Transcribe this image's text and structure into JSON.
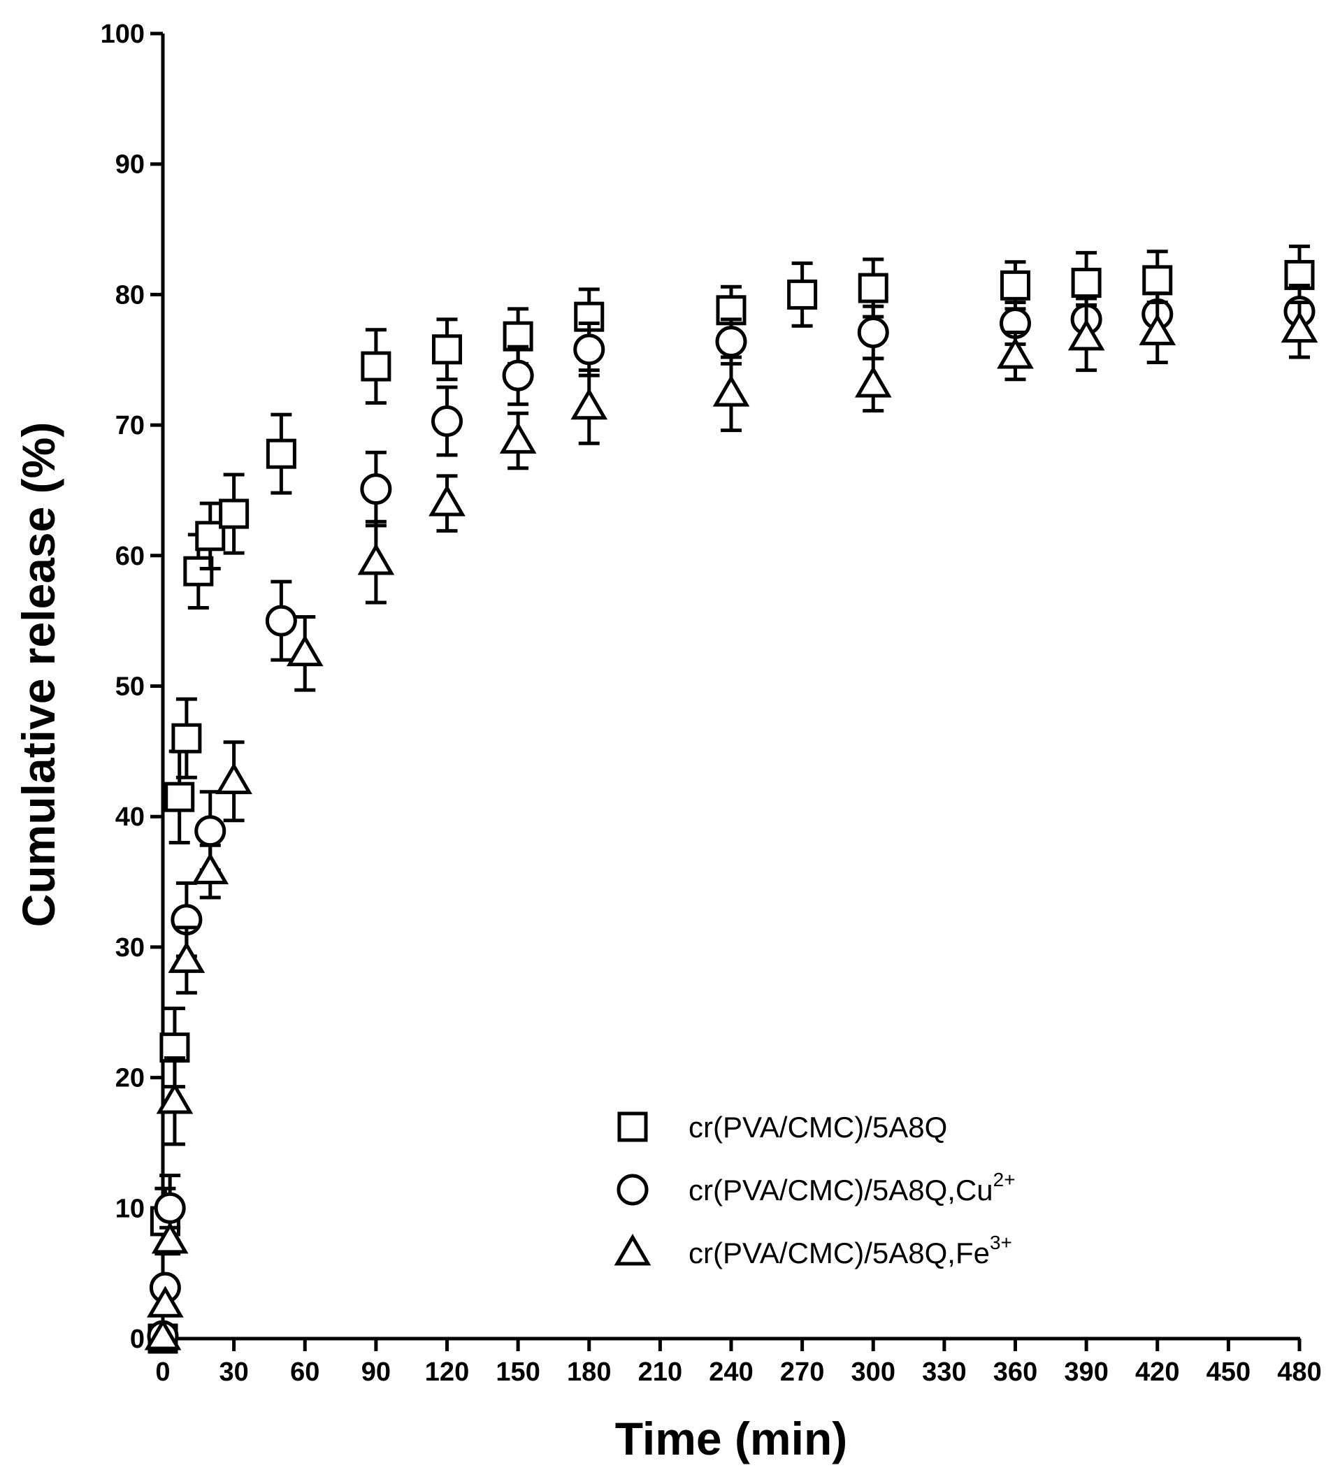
{
  "chart_data": {
    "type": "scatter",
    "xlabel": "Time (min)",
    "ylabel": "Cumulative release (%)",
    "xlim": [
      0,
      480
    ],
    "ylim": [
      0,
      100
    ],
    "x_ticks": [
      "0",
      "30",
      "60",
      "90",
      "120",
      "150",
      "180",
      "210",
      "240",
      "270",
      "300",
      "330",
      "360",
      "390",
      "420",
      "450",
      "480"
    ],
    "y_ticks": [
      "0",
      "10",
      "20",
      "30",
      "40",
      "50",
      "60",
      "70",
      "80",
      "90",
      "100"
    ],
    "grid": false,
    "legend_position": "bottom-right",
    "series": [
      {
        "name": "cr(PVA/CMC)/5A8Q",
        "name_base": "cr(PVA/CMC)/5A8Q",
        "name_sup": "",
        "marker": "square",
        "points": [
          {
            "x": 0,
            "y": 0,
            "err": 0
          },
          {
            "x": 1,
            "y": 9,
            "err": 2.5
          },
          {
            "x": 5,
            "y": 22.3,
            "err": 3
          },
          {
            "x": 7,
            "y": 41.5,
            "err": 3.5
          },
          {
            "x": 10,
            "y": 46,
            "err": 3
          },
          {
            "x": 15,
            "y": 58.8,
            "err": 2.8
          },
          {
            "x": 20,
            "y": 61.5,
            "err": 2.5
          },
          {
            "x": 30,
            "y": 63.2,
            "err": 3
          },
          {
            "x": 50,
            "y": 67.8,
            "err": 3
          },
          {
            "x": 90,
            "y": 74.5,
            "err": 2.8
          },
          {
            "x": 120,
            "y": 75.8,
            "err": 2.3
          },
          {
            "x": 150,
            "y": 76.8,
            "err": 2.1
          },
          {
            "x": 180,
            "y": 78.3,
            "err": 2.1
          },
          {
            "x": 240,
            "y": 78.8,
            "err": 1.8
          },
          {
            "x": 270,
            "y": 80,
            "err": 2.4
          },
          {
            "x": 300,
            "y": 80.5,
            "err": 2.2
          },
          {
            "x": 360,
            "y": 80.7,
            "err": 1.8
          },
          {
            "x": 390,
            "y": 80.9,
            "err": 2.3
          },
          {
            "x": 420,
            "y": 81.1,
            "err": 2.2
          },
          {
            "x": 480,
            "y": 81.5,
            "err": 2.2
          }
        ]
      },
      {
        "name": "cr(PVA/CMC)/5A8Q,Cu2+",
        "name_base": "cr(PVA/CMC)/5A8Q,Cu",
        "name_sup": "2+",
        "marker": "circle",
        "points": [
          {
            "x": 0,
            "y": 0.2,
            "err": 0
          },
          {
            "x": 1,
            "y": 3.9,
            "err": 0
          },
          {
            "x": 3,
            "y": 10,
            "err": 2.5
          },
          {
            "x": 10,
            "y": 32.1,
            "err": 2.8
          },
          {
            "x": 20,
            "y": 38.9,
            "err": 3
          },
          {
            "x": 50,
            "y": 55,
            "err": 3
          },
          {
            "x": 90,
            "y": 65.1,
            "err": 2.8
          },
          {
            "x": 120,
            "y": 70.3,
            "err": 2.6
          },
          {
            "x": 150,
            "y": 73.8,
            "err": 2.2
          },
          {
            "x": 180,
            "y": 75.8,
            "err": 2
          },
          {
            "x": 240,
            "y": 76.4,
            "err": 1.7
          },
          {
            "x": 300,
            "y": 77.1,
            "err": 2
          },
          {
            "x": 360,
            "y": 77.8,
            "err": 1.6
          },
          {
            "x": 390,
            "y": 78.1,
            "err": 1.6
          },
          {
            "x": 420,
            "y": 78.5,
            "err": 1.6
          },
          {
            "x": 480,
            "y": 78.7,
            "err": 2
          }
        ]
      },
      {
        "name": "cr(PVA/CMC)/5A8Q,Fe3+",
        "name_base": "cr(PVA/CMC)/5A8Q,Fe",
        "name_sup": "3+",
        "marker": "triangle",
        "points": [
          {
            "x": 0,
            "y": 0.1,
            "err": 0
          },
          {
            "x": 1,
            "y": 2.6,
            "err": 0
          },
          {
            "x": 3,
            "y": 7.5,
            "err": 1
          },
          {
            "x": 5,
            "y": 18.2,
            "err": 3.3
          },
          {
            "x": 10,
            "y": 29,
            "err": 2.5
          },
          {
            "x": 20,
            "y": 35.8,
            "err": 2
          },
          {
            "x": 30,
            "y": 42.7,
            "err": 3
          },
          {
            "x": 60,
            "y": 52.5,
            "err": 2.8
          },
          {
            "x": 90,
            "y": 59.5,
            "err": 3.1
          },
          {
            "x": 120,
            "y": 64,
            "err": 2.1
          },
          {
            "x": 150,
            "y": 68.8,
            "err": 2.1
          },
          {
            "x": 180,
            "y": 71.4,
            "err": 2.8
          },
          {
            "x": 240,
            "y": 72.4,
            "err": 2.8
          },
          {
            "x": 300,
            "y": 73.1,
            "err": 2
          },
          {
            "x": 360,
            "y": 75.3,
            "err": 1.8
          },
          {
            "x": 390,
            "y": 76.7,
            "err": 2.5
          },
          {
            "x": 420,
            "y": 77.1,
            "err": 2.3
          },
          {
            "x": 480,
            "y": 77.3,
            "err": 2.1
          }
        ]
      }
    ]
  }
}
